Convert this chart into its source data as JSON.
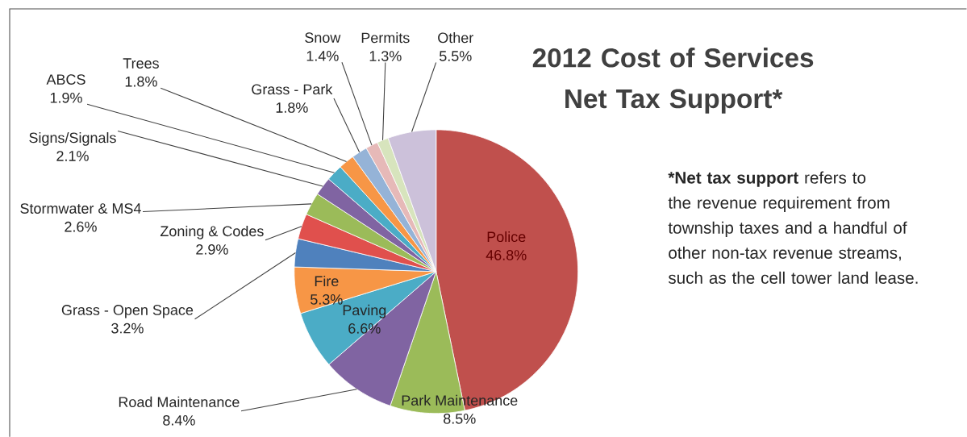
{
  "chart_data": {
    "type": "pie",
    "title": "2012 Cost of Services Net Tax Support*",
    "categories": [
      "Police",
      "Park Maintenance",
      "Road Maintenance",
      "Paving",
      "Fire",
      "Grass - Open Space",
      "Zoning & Codes",
      "Stormwater & MS4",
      "Signs/Signals",
      "ABCS",
      "Trees",
      "Grass - Park",
      "Snow",
      "Permits",
      "Other"
    ],
    "values": [
      46.8,
      8.5,
      8.4,
      6.6,
      5.3,
      3.2,
      2.9,
      2.6,
      2.1,
      1.9,
      1.8,
      1.8,
      1.4,
      1.3,
      5.5
    ],
    "value_labels": [
      "46.8%",
      "8.5%",
      "8.4%",
      "6.6%",
      "5.3%",
      "3.2%",
      "2.9%",
      "2.6%",
      "2.1%",
      "1.9%",
      "1.8%",
      "1.8%",
      "1.4%",
      "1.3%",
      "5.5%"
    ],
    "colors": [
      "#C0504D",
      "#9BBB59",
      "#8064A2",
      "#4BACC6",
      "#F79646",
      "#4F81BD",
      "#E0504D",
      "#9BBB59",
      "#8064A2",
      "#4BACC6",
      "#F79646",
      "#95B3D7",
      "#E6B9B8",
      "#D7E4BD",
      "#CCC1DA"
    ],
    "annotations": [
      "***Net tax support** refers to the revenue requirement from township taxes and a handful of other non-tax revenue streams, such as the cell tower land lease."
    ]
  }
}
